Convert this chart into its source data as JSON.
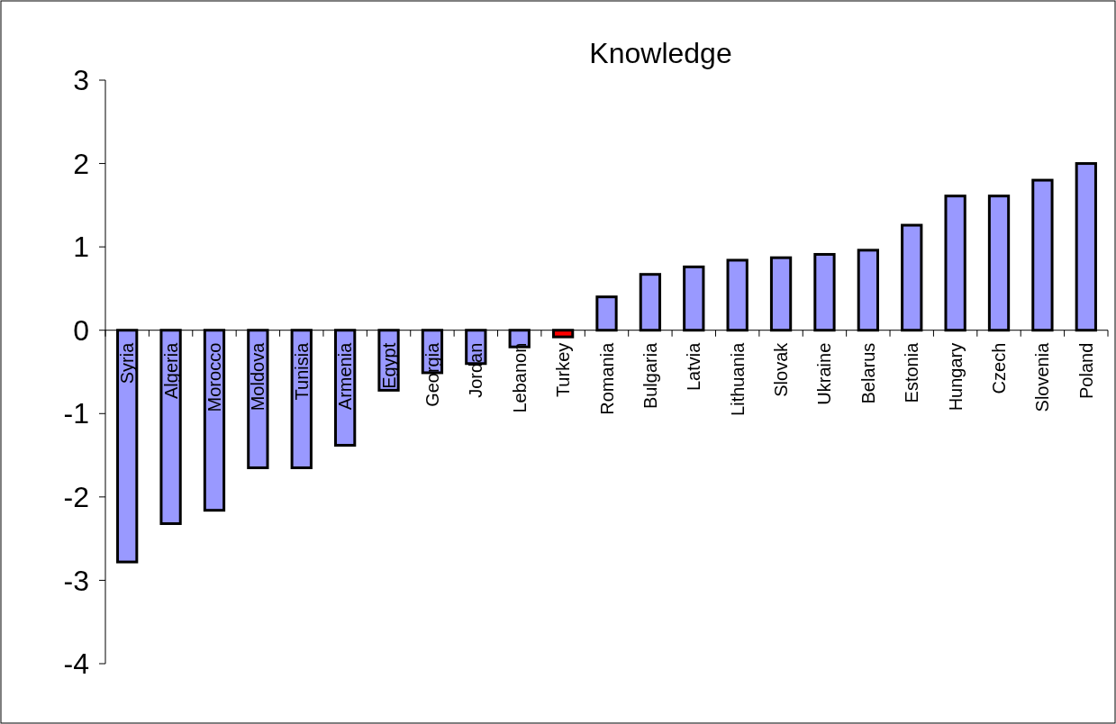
{
  "chart_data": {
    "type": "bar",
    "title": "Knowledge",
    "categories": [
      "Syria",
      "Algeria",
      "Morocco",
      "Moldova",
      "Tunisia",
      "Armenia",
      "Egypt",
      "Georgia",
      "Jordan",
      "Lebanon",
      "Turkey",
      "Romania",
      "Bulgaria",
      "Latvia",
      "Lithuania",
      "Slovak",
      "Ukraine",
      "Belarus",
      "Estonia",
      "Hungary",
      "Czech",
      "Slovenia",
      "Poland"
    ],
    "values": [
      -2.78,
      -2.32,
      -2.16,
      -1.65,
      -1.65,
      -1.38,
      -0.72,
      -0.51,
      -0.4,
      -0.2,
      -0.08,
      0.4,
      0.67,
      0.76,
      0.84,
      0.87,
      0.91,
      0.96,
      1.26,
      1.61,
      1.61,
      1.8,
      2.0
    ],
    "colors": [
      "#9999ff",
      "#9999ff",
      "#9999ff",
      "#9999ff",
      "#9999ff",
      "#9999ff",
      "#9999ff",
      "#9999ff",
      "#9999ff",
      "#9999ff",
      "#ff0000",
      "#9999ff",
      "#9999ff",
      "#9999ff",
      "#9999ff",
      "#9999ff",
      "#9999ff",
      "#9999ff",
      "#9999ff",
      "#9999ff",
      "#9999ff",
      "#9999ff",
      "#9999ff"
    ],
    "ylim": [
      -4,
      3
    ],
    "yticks": [
      -4,
      -3,
      -2,
      -1,
      0,
      1,
      2,
      3
    ],
    "grid": false
  }
}
